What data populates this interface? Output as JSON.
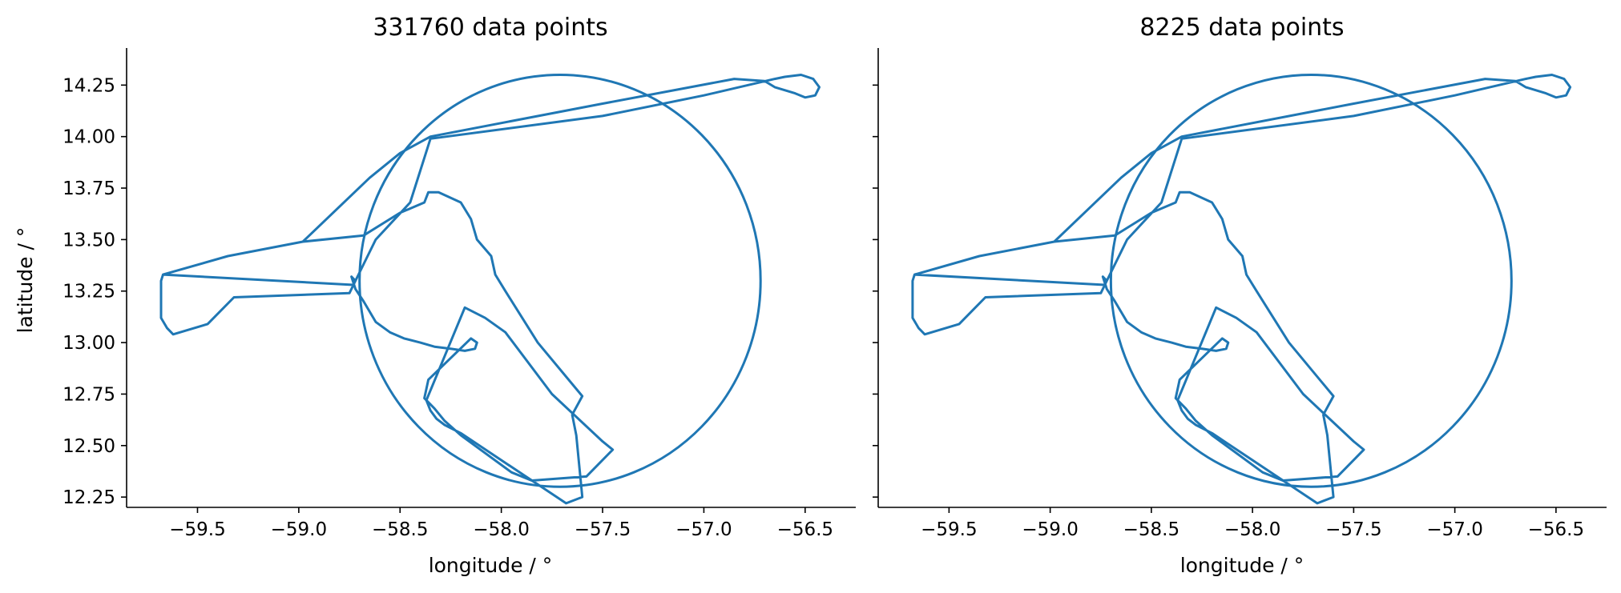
{
  "chart_data": [
    {
      "type": "line",
      "title": "331760 data points",
      "xlabel": "longitude / °",
      "ylabel": "latitude / °",
      "xlim": [
        -59.85,
        -56.25
      ],
      "ylim": [
        12.2,
        14.43
      ],
      "xticks": [
        -59.5,
        -59.0,
        -58.5,
        -58.0,
        -57.5,
        -57.0,
        -56.5
      ],
      "xtick_labels": [
        "−59.5",
        "−59.0",
        "−58.5",
        "−58.0",
        "−57.5",
        "−57.0",
        "−56.5"
      ],
      "yticks": [
        12.25,
        12.5,
        12.75,
        13.0,
        13.25,
        13.5,
        13.75,
        14.0,
        14.25
      ],
      "ytick_labels": [
        "12.25",
        "12.50",
        "12.75",
        "13.00",
        "13.25",
        "13.50",
        "13.75",
        "14.00",
        "14.25"
      ],
      "grid": false,
      "color": "#1f77b4",
      "series": [
        {
          "circle": {
            "center": [
              -57.71,
              13.3
            ],
            "radius_lon": 0.99,
            "radius_lat": 1.0
          },
          "x": [
            -58.73,
            -59.67,
            -59.68,
            -59.68,
            -59.65,
            -59.62,
            -59.45,
            -59.32,
            -58.75,
            -58.73,
            -58.72,
            -58.74,
            -58.72,
            -58.68,
            -58.62,
            -58.55,
            -58.48,
            -58.4,
            -58.33,
            -58.25,
            -58.18,
            -58.13,
            -58.12,
            -58.15,
            -58.36,
            -58.38,
            -58.33,
            -58.28,
            -58.2,
            -57.95,
            -57.85,
            -57.58,
            -57.45,
            -57.5,
            -57.75,
            -57.98,
            -58.08,
            -58.18,
            -58.37,
            -58.35,
            -58.32,
            -58.28,
            -58.2,
            -57.68,
            -57.6,
            -57.63,
            -57.65,
            -57.6,
            -57.82,
            -57.98,
            -58.03,
            -58.05,
            -58.12,
            -58.15,
            -58.2,
            -58.31,
            -58.36,
            -58.38,
            -58.5,
            -58.68,
            -58.98,
            -59.35,
            -59.67,
            -59.68,
            -59.68,
            -59.65,
            -59.62,
            -59.45,
            -59.32,
            -58.75,
            -58.73,
            -58.72,
            -58.62,
            -58.45,
            -58.35,
            -57.5,
            -57.0,
            -56.65,
            -56.6,
            -56.52,
            -56.46,
            -56.43,
            -56.45,
            -56.5,
            -56.55,
            -56.65,
            -56.7,
            -56.85,
            -57.5,
            -58.35,
            -58.5,
            -58.65,
            -58.98,
            -59.35,
            -59.67
          ],
          "y": [
            13.28,
            13.33,
            13.3,
            13.12,
            13.07,
            13.04,
            13.09,
            13.22,
            13.24,
            13.28,
            13.3,
            13.32,
            13.26,
            13.2,
            13.1,
            13.05,
            13.02,
            13.0,
            12.98,
            12.97,
            12.96,
            12.97,
            13.0,
            13.02,
            12.82,
            12.73,
            12.68,
            12.62,
            12.55,
            12.37,
            12.33,
            12.35,
            12.48,
            12.52,
            12.75,
            13.05,
            13.12,
            13.17,
            12.72,
            12.67,
            12.63,
            12.6,
            12.56,
            12.22,
            12.25,
            12.55,
            12.65,
            12.74,
            13.0,
            13.25,
            13.33,
            13.42,
            13.5,
            13.6,
            13.68,
            13.73,
            13.73,
            13.68,
            13.63,
            13.52,
            13.49,
            13.42,
            13.33,
            13.3,
            13.12,
            13.07,
            13.04,
            13.09,
            13.22,
            13.24,
            13.28,
            13.3,
            13.5,
            13.68,
            13.99,
            14.1,
            14.2,
            14.28,
            14.29,
            14.3,
            14.28,
            14.24,
            14.2,
            14.19,
            14.21,
            14.24,
            14.27,
            14.28,
            14.16,
            14.0,
            13.92,
            13.8,
            13.49,
            13.42,
            13.33
          ]
        }
      ]
    },
    {
      "type": "line",
      "title": "8225 data points",
      "xlabel": "longitude / °",
      "ylabel": "",
      "xlim": [
        -59.85,
        -56.25
      ],
      "ylim": [
        12.2,
        14.43
      ],
      "xticks": [
        -59.5,
        -59.0,
        -58.5,
        -58.0,
        -57.5,
        -57.0,
        -56.5
      ],
      "xtick_labels": [
        "−59.5",
        "−59.0",
        "−58.5",
        "−58.0",
        "−57.5",
        "−57.0",
        "−56.5"
      ],
      "yticks": [
        12.25,
        12.5,
        12.75,
        13.0,
        13.25,
        13.5,
        13.75,
        14.0,
        14.25
      ],
      "ytick_labels": [],
      "grid": false,
      "color": "#1f77b4",
      "series": [
        {
          "circle": {
            "center": [
              -57.71,
              13.3
            ],
            "radius_lon": 0.99,
            "radius_lat": 1.0
          },
          "x": [
            -58.73,
            -59.67,
            -59.68,
            -59.68,
            -59.65,
            -59.62,
            -59.45,
            -59.32,
            -58.75,
            -58.73,
            -58.72,
            -58.74,
            -58.72,
            -58.68,
            -58.62,
            -58.55,
            -58.48,
            -58.4,
            -58.33,
            -58.25,
            -58.18,
            -58.13,
            -58.12,
            -58.15,
            -58.36,
            -58.38,
            -58.33,
            -58.28,
            -58.2,
            -57.95,
            -57.85,
            -57.58,
            -57.45,
            -57.5,
            -57.75,
            -57.98,
            -58.08,
            -58.18,
            -58.37,
            -58.35,
            -58.32,
            -58.28,
            -58.2,
            -57.68,
            -57.6,
            -57.63,
            -57.65,
            -57.6,
            -57.82,
            -57.98,
            -58.03,
            -58.05,
            -58.12,
            -58.15,
            -58.2,
            -58.31,
            -58.36,
            -58.38,
            -58.5,
            -58.68,
            -58.98,
            -59.35,
            -59.67,
            -59.68,
            -59.68,
            -59.65,
            -59.62,
            -59.45,
            -59.32,
            -58.75,
            -58.73,
            -58.72,
            -58.62,
            -58.45,
            -58.35,
            -57.5,
            -57.0,
            -56.65,
            -56.6,
            -56.52,
            -56.46,
            -56.43,
            -56.45,
            -56.5,
            -56.55,
            -56.65,
            -56.7,
            -56.85,
            -57.5,
            -58.35,
            -58.5,
            -58.65,
            -58.98,
            -59.35,
            -59.67
          ],
          "y": [
            13.28,
            13.33,
            13.3,
            13.12,
            13.07,
            13.04,
            13.09,
            13.22,
            13.24,
            13.28,
            13.3,
            13.32,
            13.26,
            13.2,
            13.1,
            13.05,
            13.02,
            13.0,
            12.98,
            12.97,
            12.96,
            12.97,
            13.0,
            13.02,
            12.82,
            12.73,
            12.68,
            12.62,
            12.55,
            12.37,
            12.33,
            12.35,
            12.48,
            12.52,
            12.75,
            13.05,
            13.12,
            13.17,
            12.72,
            12.67,
            12.63,
            12.6,
            12.56,
            12.22,
            12.25,
            12.55,
            12.65,
            12.74,
            13.0,
            13.25,
            13.33,
            13.42,
            13.5,
            13.6,
            13.68,
            13.73,
            13.73,
            13.68,
            13.63,
            13.52,
            13.49,
            13.42,
            13.33,
            13.3,
            13.12,
            13.07,
            13.04,
            13.09,
            13.22,
            13.24,
            13.28,
            13.3,
            13.5,
            13.68,
            13.99,
            14.1,
            14.2,
            14.28,
            14.29,
            14.3,
            14.28,
            14.24,
            14.2,
            14.19,
            14.21,
            14.24,
            14.27,
            14.28,
            14.16,
            14.0,
            13.92,
            13.8,
            13.49,
            13.42,
            13.33
          ]
        }
      ]
    }
  ]
}
